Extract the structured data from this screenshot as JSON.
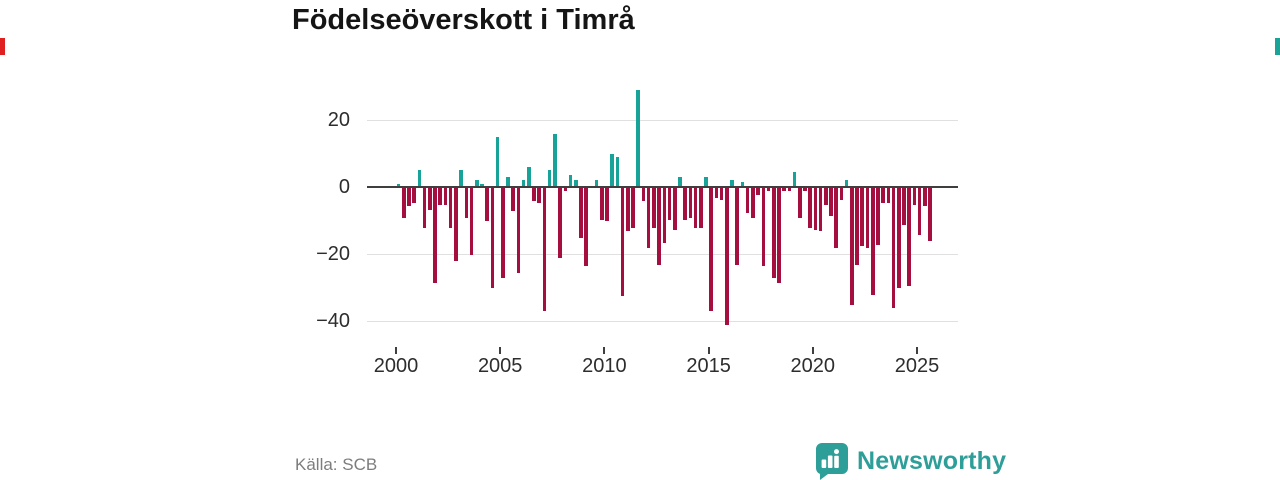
{
  "title": "Födelseöverskott i Timrå",
  "source_label": "Källa: SCB",
  "brand_name": "Newsworthy",
  "colors": {
    "positive": "#17a398",
    "negative": "#a50f40",
    "axis": "#3f3f3f",
    "gridline": "#e0e0e0",
    "brand_teal": "#2e9e99",
    "edge_left_accent": "#e02020",
    "edge_right_accent": "#1aa396"
  },
  "chart_data": {
    "type": "bar",
    "title": "Födelseöverskott i Timrå",
    "frequency": "quarterly",
    "start_year": 2000,
    "start_quarter": 1,
    "end_year": 2025,
    "end_quarter": 3,
    "x_tick_labels": [
      "2000",
      "2005",
      "2010",
      "2015",
      "2020",
      "2025"
    ],
    "y_ticks": [
      20,
      0,
      -20,
      -40
    ],
    "ylim": [
      -44,
      34
    ],
    "grid": "horizontal",
    "legend": "none",
    "positive_color": "#17a398",
    "negative_color": "#a50f40",
    "values": [
      1,
      -9,
      -5.5,
      -4.5,
      5,
      -12,
      -6.5,
      -28.5,
      -5,
      -5,
      -12,
      -22,
      5,
      -9,
      -20,
      2,
      1,
      -10,
      -30,
      15,
      -27,
      3,
      -7,
      -25.5,
      2,
      6,
      -4,
      -4.5,
      -37,
      5,
      16,
      -21,
      -1,
      3.5,
      2,
      -15,
      -23.5,
      0,
      2,
      -9.5,
      -10,
      10,
      9,
      -32.5,
      -13,
      -12,
      29,
      -4,
      -18,
      -12,
      -23,
      -16.5,
      -9.5,
      -12.5,
      3,
      -9.5,
      -9,
      -12,
      -12,
      3,
      -37,
      -3,
      -3.5,
      -41,
      2,
      -23,
      1.5,
      -7.5,
      -9,
      -2,
      -23.5,
      -1,
      -27,
      -28.5,
      -1,
      -1,
      4.5,
      -9,
      -1,
      -12,
      -12.5,
      -13,
      -5,
      -8.5,
      -18,
      -3.5,
      2,
      -35,
      -23,
      -17.5,
      -18,
      -32,
      -17,
      -4.5,
      -4.5,
      -36,
      -30,
      -11,
      -29.5,
      -5,
      -14,
      -5.5,
      -16
    ]
  }
}
